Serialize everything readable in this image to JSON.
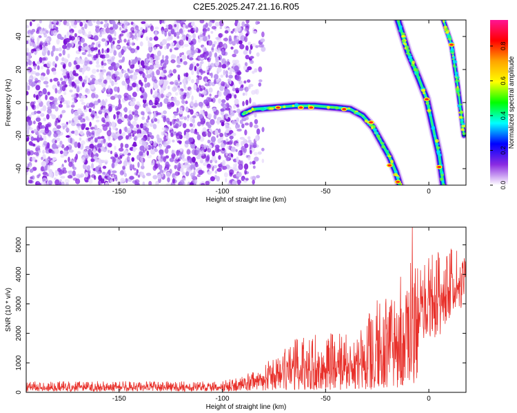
{
  "title": "C2E5.2025.247.21.16.R05",
  "chart_data": [
    {
      "type": "heatmap",
      "xlabel": "Height of straight line (km)",
      "ylabel": "Frequency (Hz)",
      "xlim": [
        -195,
        18
      ],
      "ylim": [
        -50,
        50
      ],
      "xticks": [
        -150,
        -100,
        -50,
        0
      ],
      "yticks": [
        -40,
        -20,
        0,
        20,
        40
      ],
      "grid": false,
      "colorbar": {
        "label": "Normalized spectral amplitude",
        "range": [
          0.0,
          0.95
        ],
        "ticks": [
          "0.0",
          "0.2",
          "0.4",
          "0.6",
          "0.8"
        ],
        "colors": [
          "#ffffff",
          "#8a2be2",
          "#0000ff",
          "#00ffff",
          "#00ff00",
          "#ffff00",
          "#ffa500",
          "#ff0000",
          "#ff1493"
        ]
      },
      "noise_region": {
        "x": [
          -195,
          -80
        ],
        "y": [
          -50,
          50
        ],
        "amplitude": 0.1
      },
      "traces": [
        {
          "points": [
            [
              -90,
              -7
            ],
            [
              -85,
              -4
            ],
            [
              -75,
              -3
            ],
            [
              -65,
              -2
            ],
            [
              -55,
              -2
            ],
            [
              -45,
              -3
            ],
            [
              -38,
              -4
            ],
            [
              -32,
              -8
            ],
            [
              -27,
              -15
            ],
            [
              -23,
              -24
            ],
            [
              -19,
              -33
            ],
            [
              -16,
              -42
            ],
            [
              -14,
              -50
            ]
          ],
          "peaks": [
            [
              -73,
              -3
            ],
            [
              -62,
              -3
            ],
            [
              -57,
              -3
            ],
            [
              -41,
              -4
            ],
            [
              -28,
              -12
            ],
            [
              -19,
              -38
            ],
            [
              -15,
              -48
            ]
          ]
        },
        {
          "points": [
            [
              -15,
              50
            ],
            [
              -10,
              30
            ],
            [
              -5,
              15
            ],
            [
              -1,
              2
            ],
            [
              2,
              -15
            ],
            [
              5,
              -32
            ],
            [
              7,
              -50
            ]
          ],
          "peaks": [
            [
              -1,
              2
            ],
            [
              5,
              -39
            ]
          ]
        },
        {
          "points": [
            [
              7,
              50
            ],
            [
              11,
              35
            ],
            [
              14,
              10
            ],
            [
              17,
              -20
            ]
          ],
          "peaks": [
            [
              11,
              35
            ]
          ]
        }
      ]
    },
    {
      "type": "line",
      "xlabel": "Height of straight line (km)",
      "ylabel": "SNR (10 * v/v)",
      "xlim": [
        -195,
        18
      ],
      "ylim": [
        0,
        5600
      ],
      "xticks": [
        -150,
        -100,
        -50,
        0
      ],
      "yticks": [
        0,
        1000,
        2000,
        3000,
        4000,
        5000
      ],
      "grid": false,
      "series": [
        {
          "color": "#e8302a",
          "envelope": [
            {
              "x": -195,
              "low": 30,
              "mid": 170,
              "high": 380
            },
            {
              "x": -100,
              "low": 30,
              "mid": 170,
              "high": 380
            },
            {
              "x": -85,
              "low": 40,
              "mid": 300,
              "high": 700
            },
            {
              "x": -75,
              "low": 60,
              "mid": 600,
              "high": 1200
            },
            {
              "x": -65,
              "low": 80,
              "mid": 800,
              "high": 1800
            },
            {
              "x": -55,
              "low": 80,
              "mid": 850,
              "high": 2000
            },
            {
              "x": -45,
              "low": 80,
              "mid": 850,
              "high": 2000
            },
            {
              "x": -35,
              "low": 80,
              "mid": 900,
              "high": 2000
            },
            {
              "x": -25,
              "low": 100,
              "mid": 1200,
              "high": 3200
            },
            {
              "x": -15,
              "low": 100,
              "mid": 1700,
              "high": 3800
            },
            {
              "x": -10,
              "low": 150,
              "mid": 2000,
              "high": 4500
            },
            {
              "x": -5,
              "low": 300,
              "mid": 2600,
              "high": 4400
            },
            {
              "x": 0,
              "low": 1800,
              "mid": 3200,
              "high": 4600
            },
            {
              "x": 5,
              "low": 1600,
              "mid": 3300,
              "high": 4800
            },
            {
              "x": 10,
              "low": 2500,
              "mid": 3400,
              "high": 4900
            },
            {
              "x": 18,
              "low": 2800,
              "mid": 3800,
              "high": 4700
            }
          ],
          "max_point": [
            -8,
            5600
          ]
        }
      ]
    }
  ]
}
